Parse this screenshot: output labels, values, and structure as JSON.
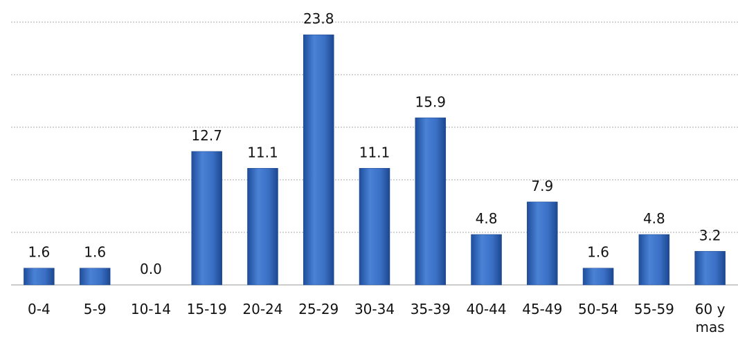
{
  "chart_data": {
    "type": "bar",
    "categories": [
      "0-4",
      "5-9",
      "10-14",
      "15-19",
      "20-24",
      "25-29",
      "30-34",
      "35-39",
      "40-44",
      "45-49",
      "50-54",
      "55-59",
      "60 y mas"
    ],
    "values": [
      1.6,
      1.6,
      0,
      12.7,
      11.1,
      23.8,
      11.1,
      15.9,
      4.8,
      7.9,
      1.6,
      4.8,
      3.2
    ],
    "value_labels": [
      "1.6",
      "1.6",
      "0.0",
      "12.7",
      "11.1",
      "23.8",
      "11.1",
      "15.9",
      "4.8",
      "7.9",
      "1.6",
      "4.8",
      "3.2"
    ],
    "color": "#3a6fc4",
    "ylim": [
      0,
      25
    ],
    "yticks": [
      0,
      5,
      10,
      15,
      20,
      25
    ],
    "grid": true
  }
}
